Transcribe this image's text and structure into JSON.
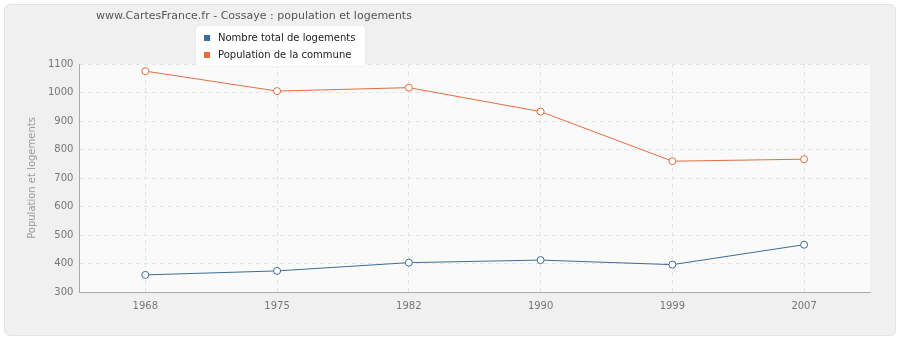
{
  "chart_data": {
    "type": "line",
    "title": "www.CartesFrance.fr - Cossaye : population et logements",
    "y_label": "Population et logements",
    "categories": [
      "1968",
      "1975",
      "1982",
      "1990",
      "1999",
      "2007"
    ],
    "series": [
      {
        "name": "Nombre total de logements",
        "color": "#3e6c9a",
        "marker": "circle",
        "values": [
          360,
          374,
          403,
          412,
          396,
          466
        ]
      },
      {
        "name": "Population de la commune",
        "color": "#e0703f",
        "marker": "circle",
        "values": [
          1075,
          1005,
          1017,
          933,
          759,
          766
        ]
      }
    ],
    "ylim": [
      300,
      1100
    ],
    "yticks": [
      300,
      400,
      500,
      600,
      700,
      800,
      900,
      1000,
      1100
    ],
    "grid": true
  }
}
